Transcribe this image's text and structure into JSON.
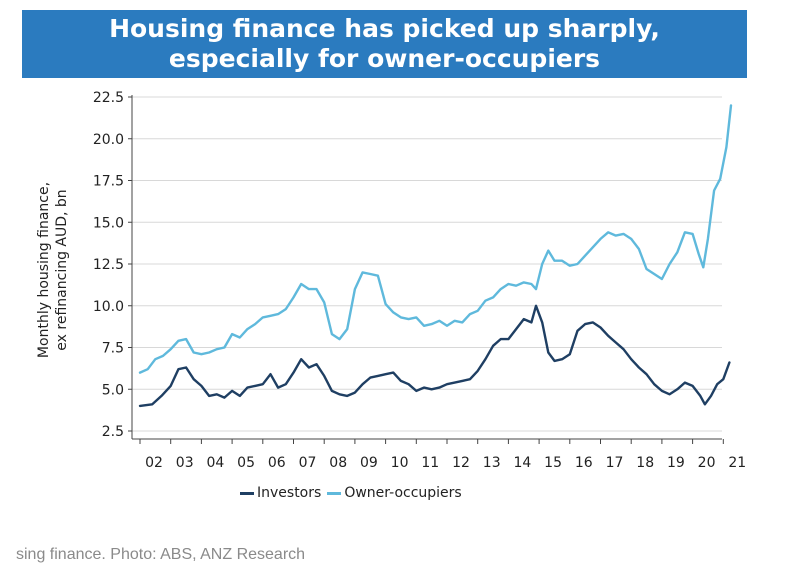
{
  "title": {
    "line1": "Housing finance has picked up sharply,",
    "line2": "especially for owner-occupiers"
  },
  "caption": "sing finance. Photo: ABS, ANZ Research",
  "chart_data": {
    "type": "line",
    "ylabel_line1": "Monthly housing finance,",
    "ylabel_line2": "ex refinancing AUD, bn",
    "xlabel": "",
    "ylim": [
      2.5,
      22.5
    ],
    "xlim": [
      2002,
      2021.5
    ],
    "yticks": [
      "2.5",
      "5.0",
      "7.5",
      "10.0",
      "12.5",
      "15.0",
      "17.5",
      "20.0",
      "22.5"
    ],
    "xticks": [
      "02",
      "03",
      "04",
      "05",
      "06",
      "07",
      "08",
      "09",
      "10",
      "11",
      "12",
      "13",
      "14",
      "15",
      "16",
      "17",
      "18",
      "19",
      "20",
      "21"
    ],
    "grid": "horizontal",
    "legend_position": "bottom-center",
    "series": [
      {
        "name": "Investors",
        "color": "#1f3f63",
        "points": [
          [
            2002.0,
            4.0
          ],
          [
            2002.4,
            4.1
          ],
          [
            2002.7,
            4.6
          ],
          [
            2003.0,
            5.2
          ],
          [
            2003.25,
            6.2
          ],
          [
            2003.5,
            6.3
          ],
          [
            2003.75,
            5.6
          ],
          [
            2004.0,
            5.2
          ],
          [
            2004.25,
            4.6
          ],
          [
            2004.5,
            4.7
          ],
          [
            2004.75,
            4.5
          ],
          [
            2005.0,
            4.9
          ],
          [
            2005.25,
            4.6
          ],
          [
            2005.5,
            5.1
          ],
          [
            2005.75,
            5.2
          ],
          [
            2006.0,
            5.3
          ],
          [
            2006.25,
            5.9
          ],
          [
            2006.5,
            5.1
          ],
          [
            2006.75,
            5.3
          ],
          [
            2007.0,
            6.0
          ],
          [
            2007.25,
            6.8
          ],
          [
            2007.5,
            6.3
          ],
          [
            2007.75,
            6.5
          ],
          [
            2008.0,
            5.8
          ],
          [
            2008.25,
            4.9
          ],
          [
            2008.5,
            4.7
          ],
          [
            2008.75,
            4.6
          ],
          [
            2009.0,
            4.8
          ],
          [
            2009.25,
            5.3
          ],
          [
            2009.5,
            5.7
          ],
          [
            2009.75,
            5.8
          ],
          [
            2010.0,
            5.9
          ],
          [
            2010.25,
            6.0
          ],
          [
            2010.5,
            5.5
          ],
          [
            2010.75,
            5.3
          ],
          [
            2011.0,
            4.9
          ],
          [
            2011.25,
            5.1
          ],
          [
            2011.5,
            5.0
          ],
          [
            2011.75,
            5.1
          ],
          [
            2012.0,
            5.3
          ],
          [
            2012.25,
            5.4
          ],
          [
            2012.5,
            5.5
          ],
          [
            2012.75,
            5.6
          ],
          [
            2013.0,
            6.1
          ],
          [
            2013.25,
            6.8
          ],
          [
            2013.5,
            7.6
          ],
          [
            2013.75,
            8.0
          ],
          [
            2014.0,
            8.0
          ],
          [
            2014.25,
            8.6
          ],
          [
            2014.5,
            9.2
          ],
          [
            2014.75,
            9.0
          ],
          [
            2014.9,
            10.0
          ],
          [
            2015.1,
            9.0
          ],
          [
            2015.3,
            7.2
          ],
          [
            2015.5,
            6.7
          ],
          [
            2015.75,
            6.8
          ],
          [
            2016.0,
            7.1
          ],
          [
            2016.25,
            8.5
          ],
          [
            2016.5,
            8.9
          ],
          [
            2016.75,
            9.0
          ],
          [
            2017.0,
            8.7
          ],
          [
            2017.25,
            8.2
          ],
          [
            2017.5,
            7.8
          ],
          [
            2017.75,
            7.4
          ],
          [
            2018.0,
            6.8
          ],
          [
            2018.25,
            6.3
          ],
          [
            2018.5,
            5.9
          ],
          [
            2018.75,
            5.3
          ],
          [
            2019.0,
            4.9
          ],
          [
            2019.25,
            4.7
          ],
          [
            2019.5,
            5.0
          ],
          [
            2019.75,
            5.4
          ],
          [
            2020.0,
            5.2
          ],
          [
            2020.25,
            4.6
          ],
          [
            2020.4,
            4.1
          ],
          [
            2020.6,
            4.6
          ],
          [
            2020.8,
            5.3
          ],
          [
            2021.0,
            5.6
          ],
          [
            2021.2,
            6.6
          ]
        ]
      },
      {
        "name": "Owner-occupiers",
        "color": "#5fb9dc",
        "points": [
          [
            2002.0,
            6.0
          ],
          [
            2002.25,
            6.2
          ],
          [
            2002.5,
            6.8
          ],
          [
            2002.75,
            7.0
          ],
          [
            2003.0,
            7.4
          ],
          [
            2003.25,
            7.9
          ],
          [
            2003.5,
            8.0
          ],
          [
            2003.75,
            7.2
          ],
          [
            2004.0,
            7.1
          ],
          [
            2004.25,
            7.2
          ],
          [
            2004.5,
            7.4
          ],
          [
            2004.75,
            7.5
          ],
          [
            2005.0,
            8.3
          ],
          [
            2005.25,
            8.1
          ],
          [
            2005.5,
            8.6
          ],
          [
            2005.75,
            8.9
          ],
          [
            2006.0,
            9.3
          ],
          [
            2006.25,
            9.4
          ],
          [
            2006.5,
            9.5
          ],
          [
            2006.75,
            9.8
          ],
          [
            2007.0,
            10.5
          ],
          [
            2007.25,
            11.3
          ],
          [
            2007.5,
            11.0
          ],
          [
            2007.75,
            11.0
          ],
          [
            2008.0,
            10.2
          ],
          [
            2008.25,
            8.3
          ],
          [
            2008.5,
            8.0
          ],
          [
            2008.75,
            8.6
          ],
          [
            2009.0,
            11.0
          ],
          [
            2009.25,
            12.0
          ],
          [
            2009.5,
            11.9
          ],
          [
            2009.75,
            11.8
          ],
          [
            2010.0,
            10.1
          ],
          [
            2010.25,
            9.6
          ],
          [
            2010.5,
            9.3
          ],
          [
            2010.75,
            9.2
          ],
          [
            2011.0,
            9.3
          ],
          [
            2011.25,
            8.8
          ],
          [
            2011.5,
            8.9
          ],
          [
            2011.75,
            9.1
          ],
          [
            2012.0,
            8.8
          ],
          [
            2012.25,
            9.1
          ],
          [
            2012.5,
            9.0
          ],
          [
            2012.75,
            9.5
          ],
          [
            2013.0,
            9.7
          ],
          [
            2013.25,
            10.3
          ],
          [
            2013.5,
            10.5
          ],
          [
            2013.75,
            11.0
          ],
          [
            2014.0,
            11.3
          ],
          [
            2014.25,
            11.2
          ],
          [
            2014.5,
            11.4
          ],
          [
            2014.75,
            11.3
          ],
          [
            2014.9,
            11.0
          ],
          [
            2015.1,
            12.5
          ],
          [
            2015.3,
            13.3
          ],
          [
            2015.5,
            12.7
          ],
          [
            2015.75,
            12.7
          ],
          [
            2016.0,
            12.4
          ],
          [
            2016.25,
            12.5
          ],
          [
            2016.5,
            13.0
          ],
          [
            2016.75,
            13.5
          ],
          [
            2017.0,
            14.0
          ],
          [
            2017.25,
            14.4
          ],
          [
            2017.5,
            14.2
          ],
          [
            2017.75,
            14.3
          ],
          [
            2018.0,
            14.0
          ],
          [
            2018.25,
            13.4
          ],
          [
            2018.5,
            12.2
          ],
          [
            2018.75,
            11.9
          ],
          [
            2019.0,
            11.6
          ],
          [
            2019.25,
            12.5
          ],
          [
            2019.5,
            13.2
          ],
          [
            2019.75,
            14.4
          ],
          [
            2020.0,
            14.3
          ],
          [
            2020.2,
            13.1
          ],
          [
            2020.35,
            12.3
          ],
          [
            2020.5,
            14.0
          ],
          [
            2020.7,
            16.9
          ],
          [
            2020.9,
            17.6
          ],
          [
            2021.1,
            19.5
          ],
          [
            2021.25,
            22.0
          ]
        ]
      }
    ]
  }
}
